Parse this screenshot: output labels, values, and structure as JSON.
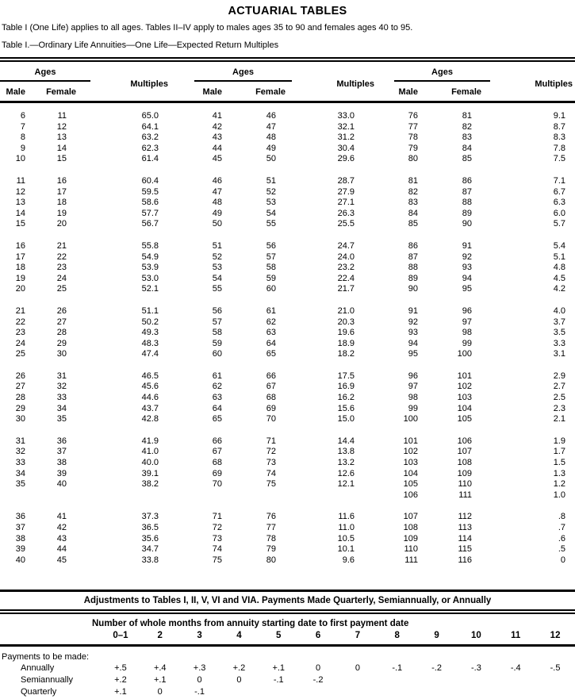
{
  "page": {
    "title": "ACTUARIAL TABLES",
    "intro": "Table I (One Life) applies to all ages. Tables II–IV apply to males ages 35 to 90 and females ages 40 to 95.",
    "table_caption": "Table I.—Ordinary Life Annuities—One Life—Expected Return Multiples"
  },
  "main_table": {
    "group_header": {
      "ages": "Ages",
      "male": "Male",
      "female": "Female",
      "multiples": "Multiples"
    },
    "blocks": [
      [
        [
          "6",
          "11",
          "65.0",
          "41",
          "46",
          "33.0",
          "76",
          "81",
          "9.1"
        ],
        [
          "7",
          "12",
          "64.1",
          "42",
          "47",
          "32.1",
          "77",
          "82",
          "8.7"
        ],
        [
          "8",
          "13",
          "63.2",
          "43",
          "48",
          "31.2",
          "78",
          "83",
          "8.3"
        ],
        [
          "9",
          "14",
          "62.3",
          "44",
          "49",
          "30.4",
          "79",
          "84",
          "7.8"
        ],
        [
          "10",
          "15",
          "61.4",
          "45",
          "50",
          "29.6",
          "80",
          "85",
          "7.5"
        ]
      ],
      [
        [
          "11",
          "16",
          "60.4",
          "46",
          "51",
          "28.7",
          "81",
          "86",
          "7.1"
        ],
        [
          "12",
          "17",
          "59.5",
          "47",
          "52",
          "27.9",
          "82",
          "87",
          "6.7"
        ],
        [
          "13",
          "18",
          "58.6",
          "48",
          "53",
          "27.1",
          "83",
          "88",
          "6.3"
        ],
        [
          "14",
          "19",
          "57.7",
          "49",
          "54",
          "26.3",
          "84",
          "89",
          "6.0"
        ],
        [
          "15",
          "20",
          "56.7",
          "50",
          "55",
          "25.5",
          "85",
          "90",
          "5.7"
        ]
      ],
      [
        [
          "16",
          "21",
          "55.8",
          "51",
          "56",
          "24.7",
          "86",
          "91",
          "5.4"
        ],
        [
          "17",
          "22",
          "54.9",
          "52",
          "57",
          "24.0",
          "87",
          "92",
          "5.1"
        ],
        [
          "18",
          "23",
          "53.9",
          "53",
          "58",
          "23.2",
          "88",
          "93",
          "4.8"
        ],
        [
          "19",
          "24",
          "53.0",
          "54",
          "59",
          "22.4",
          "89",
          "94",
          "4.5"
        ],
        [
          "20",
          "25",
          "52.1",
          "55",
          "60",
          "21.7",
          "90",
          "95",
          "4.2"
        ]
      ],
      [
        [
          "21",
          "26",
          "51.1",
          "56",
          "61",
          "21.0",
          "91",
          "96",
          "4.0"
        ],
        [
          "22",
          "27",
          "50.2",
          "57",
          "62",
          "20.3",
          "92",
          "97",
          "3.7"
        ],
        [
          "23",
          "28",
          "49.3",
          "58",
          "63",
          "19.6",
          "93",
          "98",
          "3.5"
        ],
        [
          "24",
          "29",
          "48.3",
          "59",
          "64",
          "18.9",
          "94",
          "99",
          "3.3"
        ],
        [
          "25",
          "30",
          "47.4",
          "60",
          "65",
          "18.2",
          "95",
          "100",
          "3.1"
        ]
      ],
      [
        [
          "26",
          "31",
          "46.5",
          "61",
          "66",
          "17.5",
          "96",
          "101",
          "2.9"
        ],
        [
          "27",
          "32",
          "45.6",
          "62",
          "67",
          "16.9",
          "97",
          "102",
          "2.7"
        ],
        [
          "28",
          "33",
          "44.6",
          "63",
          "68",
          "16.2",
          "98",
          "103",
          "2.5"
        ],
        [
          "29",
          "34",
          "43.7",
          "64",
          "69",
          "15.6",
          "99",
          "104",
          "2.3"
        ],
        [
          "30",
          "35",
          "42.8",
          "65",
          "70",
          "15.0",
          "100",
          "105",
          "2.1"
        ]
      ],
      [
        [
          "31",
          "36",
          "41.9",
          "66",
          "71",
          "14.4",
          "101",
          "106",
          "1.9"
        ],
        [
          "32",
          "37",
          "41.0",
          "67",
          "72",
          "13.8",
          "102",
          "107",
          "1.7"
        ],
        [
          "33",
          "38",
          "40.0",
          "68",
          "73",
          "13.2",
          "103",
          "108",
          "1.5"
        ],
        [
          "34",
          "39",
          "39.1",
          "69",
          "74",
          "12.6",
          "104",
          "109",
          "1.3"
        ],
        [
          "35",
          "40",
          "38.2",
          "70",
          "75",
          "12.1",
          "105",
          "110",
          "1.2"
        ],
        [
          "",
          "",
          "",
          "",
          "",
          "",
          "106",
          "111",
          "1.0"
        ]
      ],
      [
        [
          "36",
          "41",
          "37.3",
          "71",
          "76",
          "11.6",
          "107",
          "112",
          ".8"
        ],
        [
          "37",
          "42",
          "36.5",
          "72",
          "77",
          "11.0",
          "108",
          "113",
          ".7"
        ],
        [
          "38",
          "43",
          "35.6",
          "73",
          "78",
          "10.5",
          "109",
          "114",
          ".6"
        ],
        [
          "39",
          "44",
          "34.7",
          "74",
          "79",
          "10.1",
          "110",
          "115",
          ".5"
        ],
        [
          "40",
          "45",
          "33.8",
          "75",
          "80",
          "9.6",
          "111",
          "116",
          "0"
        ]
      ]
    ]
  },
  "adjustments": {
    "title": "Adjustments to Tables I, II, V, VI and VIA. Payments Made Quarterly, Semiannually, or Annually",
    "months_header": "Number of whole months from annuity starting date to first payment date",
    "month_cols": [
      "0–1",
      "2",
      "3",
      "4",
      "5",
      "6",
      "7",
      "8",
      "9",
      "10",
      "11",
      "12"
    ],
    "row_group_label": "Payments to be made:",
    "rows": [
      {
        "label": "Annually",
        "values": [
          "+.5",
          "+.4",
          "+.3",
          "+.2",
          "+.1",
          "0",
          "0",
          "-.1",
          "-.2",
          "-.3",
          "-.4",
          "-.5"
        ]
      },
      {
        "label": "Semiannually",
        "values": [
          "+.2",
          "+.1",
          "0",
          "0",
          "-.1",
          "-.2",
          "",
          "",
          "",
          "",
          "",
          ""
        ]
      },
      {
        "label": "Quarterly",
        "values": [
          "+.1",
          "0",
          "-.1",
          "",
          "",
          "",
          "",
          "",
          "",
          "",
          "",
          ""
        ]
      }
    ]
  },
  "colors": {
    "ink": "#000000",
    "paper": "#ffffff"
  }
}
